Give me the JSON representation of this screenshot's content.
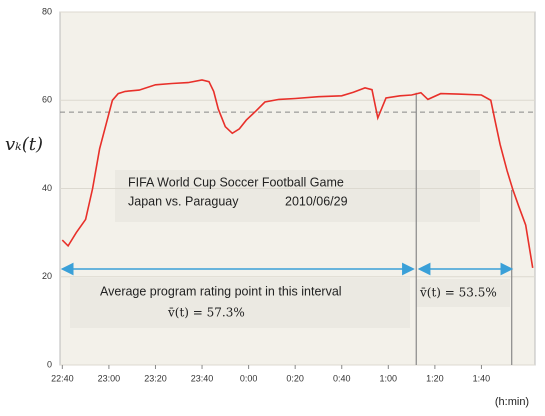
{
  "chart_data": {
    "type": "line",
    "ylabel": "vₖ(t)",
    "xlabel": "(h:min)",
    "x": [
      0,
      2.5,
      6,
      10,
      13,
      16,
      19,
      21.5,
      24,
      27,
      33,
      40,
      47,
      54,
      60,
      63,
      65,
      67,
      70,
      73,
      76,
      79,
      83,
      87,
      93,
      100,
      110,
      120,
      125,
      130,
      133,
      135.5,
      139,
      145,
      150,
      154,
      157,
      162.5,
      170,
      180,
      184,
      186,
      188,
      191,
      193.5,
      196,
      199,
      202
    ],
    "series": [
      {
        "name": "vₖ(t)",
        "color": "#e8302a",
        "values": [
          28.3,
          27,
          30,
          33,
          40,
          49,
          55,
          60,
          61.5,
          62,
          62.3,
          63.5,
          63.8,
          64,
          64.6,
          64.2,
          62,
          58,
          54,
          52.5,
          53.5,
          55.5,
          57.5,
          59.6,
          60.2,
          60.4,
          60.8,
          61,
          61.8,
          62.8,
          62.4,
          56,
          60.5,
          61,
          61.2,
          61.7,
          60.2,
          61.5,
          61.4,
          61.2,
          60,
          55,
          50,
          44,
          39.7,
          36,
          31.7,
          22
        ]
      }
    ],
    "xlim": [
      -1,
      203
    ],
    "xticks": [
      {
        "value": 0,
        "label": "22:40"
      },
      {
        "value": 20,
        "label": "23:00"
      },
      {
        "value": 40,
        "label": "23:20"
      },
      {
        "value": 60,
        "label": "23:40"
      },
      {
        "value": 80,
        "label": "0:00"
      },
      {
        "value": 100,
        "label": "0:20"
      },
      {
        "value": 120,
        "label": "0:40"
      },
      {
        "value": 140,
        "label": "1:00"
      },
      {
        "value": 160,
        "label": "1:20"
      },
      {
        "value": 180,
        "label": "1:40"
      }
    ],
    "ylim": [
      0,
      80
    ],
    "yticks": [
      0,
      20,
      40,
      60,
      80
    ],
    "grid": true,
    "reference_line": 57.3,
    "interval_markers": [
      152,
      193
    ],
    "annotations": {
      "title": "FIFA World Cup Soccer Football Game",
      "match": "Japan vs. Paraguay",
      "date": "2010/06/29",
      "interval_text": "Average program rating point in this interval",
      "mean_first": "v̄(t) = 57.3%",
      "mean_second": "v̄(t) = 53.5%"
    }
  }
}
